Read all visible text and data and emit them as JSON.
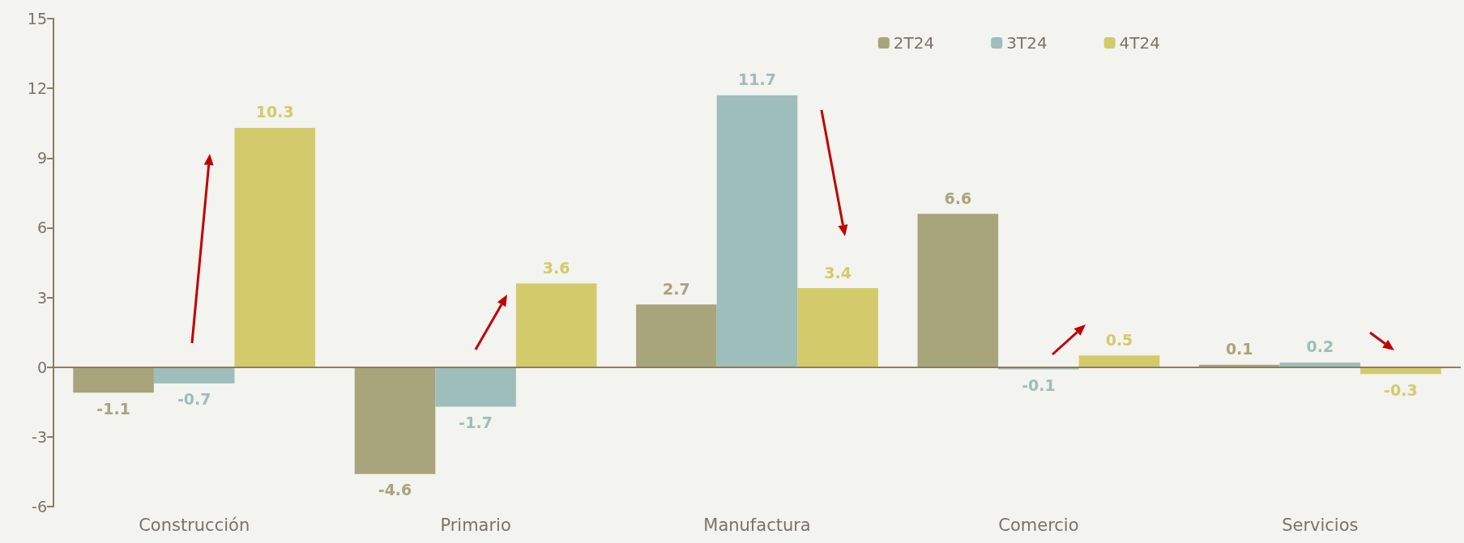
{
  "chart_data": {
    "type": "bar",
    "categories": [
      "Construcción",
      "Primario",
      "Manufactura",
      "Comercio",
      "Servicios"
    ],
    "series": [
      {
        "name": "2T24",
        "color": "#a8a47c",
        "values": [
          -1.1,
          -4.6,
          2.7,
          6.6,
          0.1
        ]
      },
      {
        "name": "3T24",
        "color": "#9dbebb",
        "values": [
          -0.7,
          -1.7,
          11.7,
          -0.1,
          0.2
        ]
      },
      {
        "name": "4T24",
        "color": "#d3cb6b",
        "values": [
          10.3,
          3.6,
          3.4,
          0.5,
          -0.3
        ]
      }
    ],
    "ref_lines": [
      {
        "axis": "y",
        "value": 0,
        "color": "#8b7d5e"
      }
    ],
    "ylim": [
      -6,
      15
    ],
    "yticks": [
      -6,
      -3,
      0,
      3,
      6,
      9,
      12,
      15
    ],
    "grid": false,
    "legend": "top right",
    "data_labels": true
  }
}
